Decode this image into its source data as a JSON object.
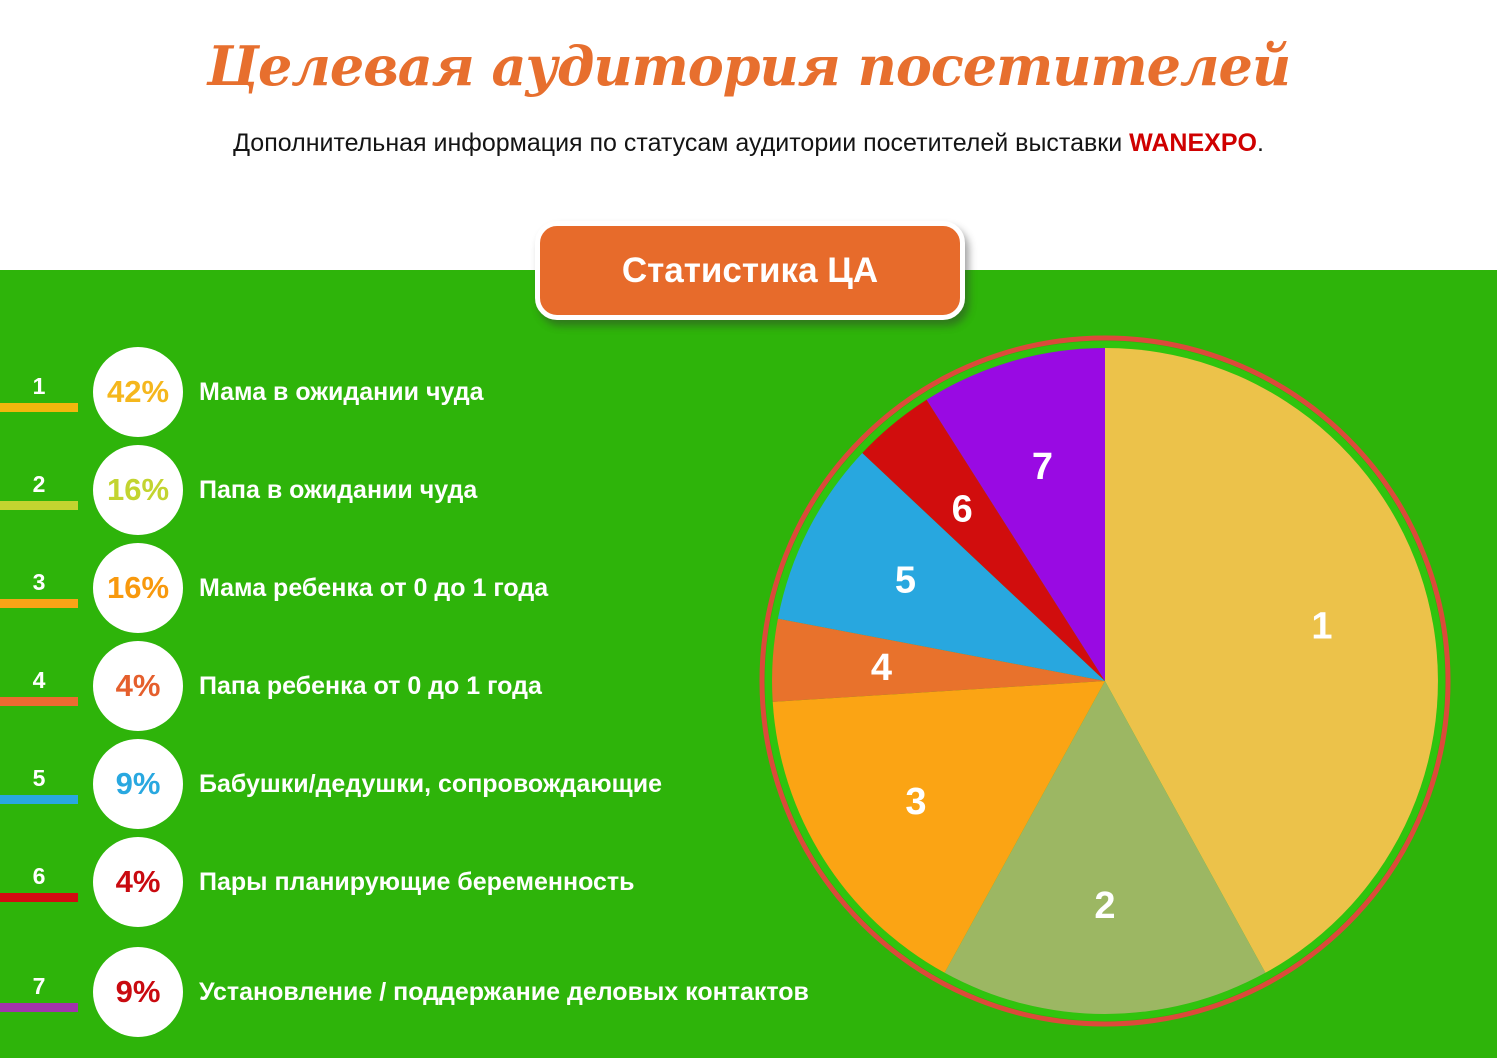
{
  "header": {
    "title": "Целевая аудитория посетителей",
    "subtitle_prefix": "Дополнительная информация по статусам аудитории посетителей выставки ",
    "brand": "WANEXPO",
    "subtitle_suffix": ".",
    "badge_label": "Статистика ЦА"
  },
  "colors": {
    "background_green": "#2eb40a",
    "pie_inner_ring_green": "#2fc40e",
    "pie_outer_ring_red": "#dc4a3a",
    "title_orange": "#e76f2e",
    "badge_orange": "#e76b2b",
    "brand_red": "#cf0000",
    "text_white": "#ffffff"
  },
  "chart_data": {
    "type": "pie",
    "title": "Статистика ЦА",
    "value_unit": "%",
    "start_angle_deg": 0,
    "direction": "clockwise",
    "legend_position": "left",
    "categories": [
      "Мама в ожидании чуда",
      "Папа в ожидании чуда",
      "Мама ребенка от 0 до 1 года",
      "Папа ребенка от 0 до 1 года",
      "Бабушки/дедушки, сопровождающие",
      "Пары планирующие беременность",
      "Установление / поддержание деловых контактов"
    ],
    "values": [
      42,
      16,
      16,
      4,
      9,
      4,
      9
    ],
    "slices": [
      {
        "num": "1",
        "value": 42,
        "pct_label": "42%",
        "label": "Мама в ожидании чуда",
        "slice_color": "#ecc24a",
        "legend_bar_color": "#f2b70d",
        "legend_pct_color": "#f5b71d"
      },
      {
        "num": "2",
        "value": 16,
        "pct_label": "16%",
        "label": "Папа в ожидании чуда",
        "slice_color": "#9cb763",
        "legend_bar_color": "#c3d430",
        "legend_pct_color": "#c3d430"
      },
      {
        "num": "3",
        "value": 16,
        "pct_label": "16%",
        "label": "Мама ребенка от 0 до 1 года",
        "slice_color": "#fba414",
        "legend_bar_color": "#f9a416",
        "legend_pct_color": "#f8990d"
      },
      {
        "num": "4",
        "value": 4,
        "pct_label": "4%",
        "label": "Папа ребенка от 0 до 1 года",
        "slice_color": "#e8722c",
        "legend_bar_color": "#ed6b31",
        "legend_pct_color": "#e55f2d"
      },
      {
        "num": "5",
        "value": 9,
        "pct_label": "9%",
        "label": "Бабушки/дедушки, сопровождающие",
        "slice_color": "#28a7df",
        "legend_bar_color": "#29a8e0",
        "legend_pct_color": "#29a8e0"
      },
      {
        "num": "6",
        "value": 4,
        "pct_label": "4%",
        "label": "Пары планирующие беременность",
        "slice_color": "#d10d0d",
        "legend_bar_color": "#d30b12",
        "legend_pct_color": "#c90a10"
      },
      {
        "num": "7",
        "value": 9,
        "pct_label": "9%",
        "label": "Установление / поддержание деловых контактов",
        "slice_color": "#990ae3",
        "legend_bar_color": "#a233ad",
        "legend_pct_color": "#c90a10"
      }
    ]
  }
}
